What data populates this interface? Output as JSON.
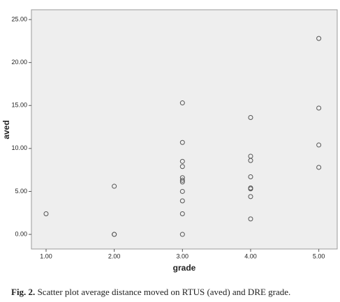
{
  "chart_data": {
    "type": "scatter",
    "x_label": "grade",
    "y_label": "aved",
    "x": [
      1,
      2,
      2,
      2,
      3,
      3,
      3,
      3,
      3,
      3,
      3,
      3,
      3,
      3,
      3,
      4,
      4,
      4,
      4,
      4,
      4,
      4,
      4,
      5,
      5,
      5,
      5
    ],
    "values": [
      2.4,
      5.6,
      0,
      0,
      15.3,
      10.7,
      8.5,
      7.9,
      6.6,
      6.3,
      6.1,
      5.0,
      3.9,
      2.4,
      0,
      13.6,
      9.1,
      8.6,
      6.7,
      5.4,
      5.3,
      4.4,
      1.8,
      22.8,
      14.7,
      10.4,
      7.8
    ],
    "color": "#555555",
    "xlim": [
      0.785,
      5.27
    ],
    "ylim": [
      -1.7,
      26.14
    ],
    "xticks": [
      {
        "value": 1,
        "label": "1.00"
      },
      {
        "value": 2,
        "label": "2.00"
      },
      {
        "value": 3,
        "label": "3.00"
      },
      {
        "value": 4,
        "label": "4.00"
      },
      {
        "value": 5,
        "label": "5.00"
      }
    ],
    "yticks": [
      {
        "value": 0,
        "label": "0.00"
      },
      {
        "value": 5,
        "label": "5.00"
      },
      {
        "value": 10,
        "label": "10.00"
      },
      {
        "value": 15,
        "label": "15.00"
      },
      {
        "value": 20,
        "label": "20.00"
      },
      {
        "value": 25,
        "label": "25.00"
      }
    ],
    "caption_label": "Fig. 2.",
    "caption": "Scatter plot average distance moved on RTUS (aved) and DRE grade."
  }
}
